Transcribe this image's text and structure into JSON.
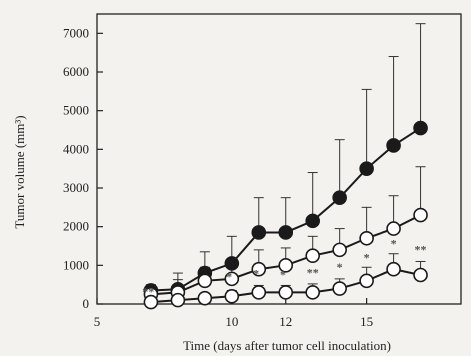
{
  "chart_data": {
    "type": "line",
    "xlabel": "Time (days after tumor cell inoculation)",
    "ylabel": "Tumor volume (mm³)",
    "xlim": [
      5,
      18.5
    ],
    "ylim": [
      0,
      7500
    ],
    "xticks": [
      "5",
      "10",
      "12",
      "15"
    ],
    "yticks": [
      "0",
      "1000",
      "2000",
      "3000",
      "4000",
      "5000",
      "6000",
      "7000"
    ],
    "grid": false,
    "legend": "none",
    "series": [
      {
        "marker": "filled-circle",
        "color": "#1a1a1a",
        "x": [
          7,
          8,
          9,
          10,
          11,
          12,
          13,
          14,
          15,
          16,
          17
        ],
        "y": [
          350,
          380,
          800,
          1050,
          1850,
          1850,
          2150,
          2750,
          3500,
          4100,
          4550
        ],
        "err": [
          150,
          250,
          550,
          700,
          900,
          900,
          1250,
          1500,
          2050,
          2300,
          2700
        ]
      },
      {
        "marker": "open-circle",
        "color": "#1a1a1a",
        "x": [
          7,
          8,
          9,
          10,
          11,
          12,
          13,
          14,
          15,
          16,
          17
        ],
        "y": [
          250,
          300,
          600,
          650,
          900,
          1000,
          1250,
          1400,
          1700,
          1950,
          2300
        ],
        "err": [
          120,
          500,
          350,
          300,
          500,
          450,
          500,
          550,
          800,
          850,
          1250
        ]
      },
      {
        "marker": "open-circle",
        "color": "#1a1a1a",
        "x": [
          7,
          8,
          9,
          10,
          11,
          12,
          13,
          14,
          15,
          16,
          17
        ],
        "y": [
          50,
          100,
          150,
          200,
          300,
          300,
          300,
          400,
          600,
          900,
          750
        ],
        "err": [
          60,
          80,
          100,
          150,
          180,
          180,
          220,
          250,
          350,
          400,
          350
        ]
      }
    ],
    "annotations": [
      {
        "text": "**",
        "x": 6.9,
        "y": 60
      },
      {
        "text": "*",
        "x": 9.9,
        "y": 450
      },
      {
        "text": "*",
        "x": 10.9,
        "y": 530
      },
      {
        "text": "*",
        "x": 11.9,
        "y": 500
      },
      {
        "text": "**",
        "x": 13,
        "y": 550
      },
      {
        "text": "*",
        "x": 14,
        "y": 700
      },
      {
        "text": "*",
        "x": 15,
        "y": 950
      },
      {
        "text": "*",
        "x": 16,
        "y": 1300
      },
      {
        "text": "**",
        "x": 17,
        "y": 1150
      }
    ]
  }
}
